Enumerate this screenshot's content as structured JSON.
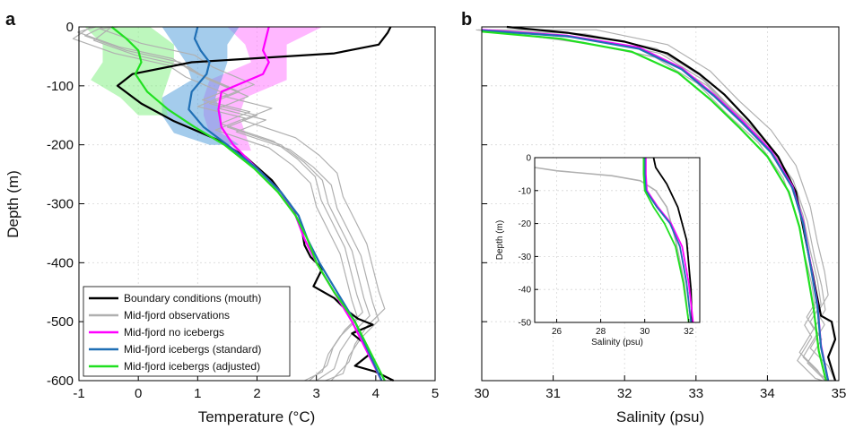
{
  "colors": {
    "boundary": "#000000",
    "observations": "#b0b0b0",
    "no_icebergs": "#ff00ff",
    "icebergs_standard": "#1f6fb5",
    "icebergs_adjusted": "#20e020",
    "band_no_icebergs": "#ff7cff",
    "band_standard": "#5aa2dc",
    "band_adjusted": "#86f086"
  },
  "chart_data": [
    {
      "type": "line",
      "panel_letter": "a",
      "xlabel": "Temperature (°C)",
      "ylabel": "Depth (m)",
      "xlim": [
        -1,
        5
      ],
      "ylim": [
        -600,
        0
      ],
      "xticks": [
        "-1",
        "0",
        "1",
        "2",
        "3",
        "4",
        "5"
      ],
      "yticks": [
        "0",
        "-100",
        "-200",
        "-300",
        "-400",
        "-500",
        "-600"
      ],
      "grid": true,
      "legend_position": "bottom-left",
      "legend": [
        "Boundary conditions (mouth)",
        "Mid-fjord observations",
        "Mid-fjord no icebergs",
        "Mid-fjord icebergs (standard)",
        "Mid-fjord icebergs (adjusted)"
      ],
      "series": [
        {
          "name": "Boundary conditions (mouth)",
          "color_key": "boundary",
          "x": [
            4.25,
            4.2,
            4.05,
            3.3,
            0.9,
            -0.1,
            -0.35,
            0.05,
            0.6,
            1.3,
            1.8,
            2.25,
            2.55,
            2.75,
            2.8,
            2.9,
            3.1,
            2.95,
            3.3,
            3.5,
            3.7,
            3.95,
            3.6,
            3.85,
            3.9,
            3.65,
            4.0,
            4.3
          ],
          "y": [
            0,
            -10,
            -30,
            -45,
            -60,
            -80,
            -100,
            -130,
            -160,
            -190,
            -220,
            -260,
            -300,
            -340,
            -370,
            -390,
            -410,
            -440,
            -460,
            -480,
            -495,
            -505,
            -520,
            -540,
            -555,
            -575,
            -585,
            -600
          ]
        },
        {
          "name": "Mid-fjord observations",
          "color_key": "observations",
          "x": [
            -0.6,
            -0.9,
            -0.2,
            0.7,
            1.0,
            1.7,
            1.2,
            2.0,
            1.5,
            2.4,
            2.8,
            3.1,
            3.2,
            3.4,
            3.6,
            3.7,
            3.8,
            3.9,
            3.6,
            3.4,
            3.3,
            3.0
          ],
          "y": [
            0,
            -15,
            -40,
            -60,
            -80,
            -110,
            -130,
            -150,
            -170,
            -200,
            -230,
            -260,
            -300,
            -340,
            -380,
            -420,
            -460,
            -490,
            -520,
            -550,
            -580,
            -600
          ]
        },
        {
          "name": "Mid-fjord no icebergs",
          "color_key": "no_icebergs",
          "x": [
            2.2,
            2.15,
            2.1,
            2.2,
            2.1,
            1.4,
            1.35,
            1.4,
            1.6,
            2.0,
            2.4,
            2.65,
            2.8,
            3.0,
            3.3,
            3.6,
            4.1
          ],
          "y": [
            0,
            -20,
            -40,
            -60,
            -80,
            -110,
            -140,
            -170,
            -200,
            -240,
            -280,
            -320,
            -360,
            -400,
            -450,
            -500,
            -600
          ]
        },
        {
          "name": "Mid-fjord icebergs (standard)",
          "color_key": "icebergs_standard",
          "x": [
            1.0,
            0.95,
            1.05,
            1.2,
            1.15,
            0.9,
            0.85,
            1.1,
            1.5,
            2.0,
            2.4,
            2.7,
            2.85,
            3.05,
            3.35,
            3.65,
            4.1
          ],
          "y": [
            0,
            -20,
            -40,
            -60,
            -80,
            -110,
            -140,
            -170,
            -200,
            -240,
            -280,
            -320,
            -360,
            -400,
            -450,
            -500,
            -600
          ]
        },
        {
          "name": "Mid-fjord icebergs (adjusted)",
          "color_key": "icebergs_adjusted",
          "x": [
            -0.45,
            -0.2,
            0.0,
            0.05,
            -0.05,
            0.15,
            0.5,
            0.95,
            1.45,
            1.95,
            2.35,
            2.65,
            2.85,
            3.0,
            3.3,
            3.65,
            4.15
          ],
          "y": [
            0,
            -20,
            -40,
            -60,
            -80,
            -110,
            -140,
            -170,
            -200,
            -240,
            -280,
            -320,
            -360,
            -400,
            -450,
            -500,
            -600
          ]
        }
      ],
      "bands": [
        {
          "color_key": "band_no_icebergs",
          "y": [
            0,
            -30,
            -60,
            -90,
            -120,
            -150,
            -180,
            -210
          ],
          "x_low": [
            1.5,
            1.8,
            1.9,
            1.2,
            1.1,
            1.1,
            1.2,
            1.6
          ],
          "x_high": [
            3.1,
            2.5,
            2.5,
            2.5,
            1.8,
            1.7,
            1.8,
            1.9
          ]
        },
        {
          "color_key": "band_standard",
          "y": [
            0,
            -30,
            -60,
            -90,
            -120,
            -150,
            -180,
            -200
          ],
          "x_low": [
            0.4,
            0.6,
            0.8,
            0.9,
            0.4,
            0.4,
            0.6,
            1.2
          ],
          "x_high": [
            1.7,
            1.5,
            1.5,
            1.4,
            1.3,
            1.4,
            1.4,
            1.7
          ]
        },
        {
          "color_key": "band_adjusted",
          "y": [
            0,
            -30,
            -60,
            -90,
            -120,
            -150
          ],
          "x_low": [
            -0.9,
            -0.6,
            -0.6,
            -0.8,
            -0.3,
            0.0
          ],
          "x_high": [
            0.2,
            0.6,
            0.6,
            0.5,
            0.4,
            0.5
          ]
        }
      ]
    },
    {
      "type": "line",
      "panel_letter": "b",
      "xlabel": "Salinity (psu)",
      "ylabel": "",
      "xlim": [
        30,
        35
      ],
      "ylim": [
        -600,
        0
      ],
      "xticks": [
        "30",
        "31",
        "32",
        "33",
        "34",
        "35"
      ],
      "grid": true,
      "series": [
        {
          "name": "Boundary conditions (mouth)",
          "color_key": "boundary",
          "x": [
            30.35,
            31.2,
            32.0,
            32.6,
            33.05,
            33.4,
            33.75,
            34.15,
            34.4,
            34.5,
            34.6,
            34.7,
            34.75,
            34.9,
            34.95,
            34.85,
            34.95
          ],
          "y": [
            0,
            -10,
            -25,
            -45,
            -80,
            -115,
            -160,
            -220,
            -280,
            -340,
            -400,
            -460,
            -490,
            -500,
            -530,
            -560,
            -600
          ]
        },
        {
          "name": "Mid-fjord observations",
          "color_key": "observations",
          "x": [
            30.0,
            31.5,
            32.5,
            33.1,
            33.5,
            33.95,
            34.3,
            34.5,
            34.6,
            34.7,
            34.75,
            34.6,
            34.7,
            34.5,
            34.75,
            34.85
          ],
          "y": [
            -5,
            -20,
            -45,
            -90,
            -140,
            -190,
            -250,
            -320,
            -380,
            -430,
            -470,
            -500,
            -520,
            -560,
            -590,
            -600
          ]
        },
        {
          "name": "Mid-fjord no icebergs",
          "color_key": "no_icebergs",
          "x": [
            30.0,
            31.2,
            32.2,
            32.8,
            33.25,
            33.65,
            34.05,
            34.35,
            34.5,
            34.6,
            34.7,
            34.75,
            34.85
          ],
          "y": [
            -5,
            -15,
            -35,
            -70,
            -115,
            -160,
            -210,
            -270,
            -330,
            -400,
            -470,
            -540,
            -600
          ]
        },
        {
          "name": "Mid-fjord icebergs (standard)",
          "color_key": "icebergs_standard",
          "x": [
            30.0,
            31.2,
            32.2,
            32.8,
            33.25,
            33.65,
            34.05,
            34.35,
            34.5,
            34.6,
            34.7,
            34.75,
            34.85
          ],
          "y": [
            -6,
            -16,
            -37,
            -72,
            -117,
            -163,
            -213,
            -273,
            -333,
            -403,
            -473,
            -543,
            -600
          ]
        },
        {
          "name": "Mid-fjord icebergs (adjusted)",
          "color_key": "icebergs_adjusted",
          "x": [
            30.0,
            31.1,
            32.1,
            32.75,
            33.2,
            33.6,
            34.0,
            34.3,
            34.45,
            34.55,
            34.65,
            34.72,
            34.82
          ],
          "y": [
            -8,
            -20,
            -42,
            -78,
            -123,
            -170,
            -220,
            -280,
            -340,
            -410,
            -480,
            -550,
            -600
          ]
        }
      ],
      "inset": {
        "xlabel": "Salinity (psu)",
        "ylabel": "Depth (m)",
        "xlim": [
          25,
          32.5
        ],
        "ylim": [
          -50,
          0
        ],
        "xticks": [
          "26",
          "28",
          "30",
          "32"
        ],
        "yticks": [
          "0",
          "-10",
          "-20",
          "-30",
          "-40",
          "-50"
        ],
        "series": [
          {
            "color_key": "boundary",
            "x": [
              30.4,
              30.5,
              31.0,
              31.5,
              31.9,
              32.1,
              32.15
            ],
            "y": [
              0,
              -3,
              -8,
              -15,
              -25,
              -40,
              -50
            ]
          },
          {
            "color_key": "observations",
            "x": [
              25.0,
              26.0,
              28.5,
              29.8,
              30.5,
              31.0,
              31.4,
              31.8,
              32.0
            ],
            "y": [
              -3,
              -4,
              -5.5,
              -7,
              -10,
              -15,
              -25,
              -38,
              -50
            ]
          },
          {
            "color_key": "no_icebergs",
            "x": [
              30.05,
              30.05,
              30.1,
              30.6,
              31.2,
              31.7,
              32.0,
              32.2
            ],
            "y": [
              0,
              -5,
              -10,
              -15,
              -20,
              -27,
              -38,
              -50
            ]
          },
          {
            "color_key": "icebergs_standard",
            "x": [
              30.0,
              30.0,
              30.05,
              30.55,
              31.15,
              31.6,
              31.9,
              32.1
            ],
            "y": [
              0,
              -5,
              -10,
              -15,
              -20,
              -27,
              -38,
              -50
            ]
          },
          {
            "color_key": "icebergs_adjusted",
            "x": [
              29.95,
              29.95,
              30.0,
              30.4,
              30.9,
              31.4,
              31.75,
              32.0
            ],
            "y": [
              0,
              -5,
              -10,
              -15,
              -20,
              -27,
              -38,
              -50
            ]
          }
        ]
      }
    }
  ]
}
